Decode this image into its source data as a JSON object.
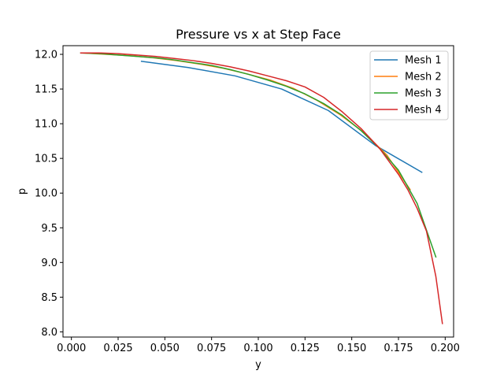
{
  "chart_data": {
    "type": "line",
    "title": "Pressure vs x at Step Face",
    "xlabel": "y",
    "ylabel": "p",
    "xlim": [
      -0.0045,
      0.2045
    ],
    "ylim": [
      7.925,
      12.125
    ],
    "xticks": [
      0.0,
      0.025,
      0.05,
      0.075,
      0.1,
      0.125,
      0.15,
      0.175,
      0.2
    ],
    "xtick_labels": [
      "0.000",
      "0.025",
      "0.050",
      "0.075",
      "0.100",
      "0.125",
      "0.150",
      "0.175",
      "0.200"
    ],
    "yticks": [
      8.0,
      8.5,
      9.0,
      9.5,
      10.0,
      10.5,
      11.0,
      11.5,
      12.0
    ],
    "ytick_labels": [
      "8.0",
      "8.5",
      "9.0",
      "9.5",
      "10.0",
      "10.5",
      "11.0",
      "11.5",
      "12.0"
    ],
    "grid": false,
    "legend_position": "top-right",
    "series": [
      {
        "name": "Mesh 1",
        "color": "#1f77b4",
        "x": [
          0.0375,
          0.0625,
          0.0875,
          0.1125,
          0.1375,
          0.1625,
          0.1875
        ],
        "y": [
          11.9,
          11.81,
          11.69,
          11.5,
          11.19,
          10.69,
          10.3
        ]
      },
      {
        "name": "Mesh 2",
        "color": "#ff7f0e",
        "x": [
          0.00625,
          0.01875,
          0.03125,
          0.04375,
          0.05625,
          0.06875,
          0.08125,
          0.09375,
          0.10625,
          0.11875,
          0.13125,
          0.14375,
          0.15625,
          0.16875,
          0.18125
        ],
        "y": [
          12.02,
          12.0,
          11.98,
          11.95,
          11.91,
          11.86,
          11.8,
          11.72,
          11.63,
          11.51,
          11.34,
          11.13,
          10.88,
          10.55,
          10.05
        ]
      },
      {
        "name": "Mesh 3",
        "color": "#2ca02c",
        "x": [
          0.005,
          0.015,
          0.025,
          0.035,
          0.045,
          0.055,
          0.065,
          0.075,
          0.085,
          0.095,
          0.105,
          0.115,
          0.125,
          0.135,
          0.145,
          0.155,
          0.165,
          0.175,
          0.185,
          0.195
        ],
        "y": [
          12.02,
          12.01,
          11.99,
          11.97,
          11.95,
          11.92,
          11.88,
          11.84,
          11.78,
          11.71,
          11.63,
          11.54,
          11.43,
          11.29,
          11.12,
          10.9,
          10.64,
          10.33,
          9.85,
          9.08
        ]
      },
      {
        "name": "Mesh 4",
        "color": "#d62728",
        "x": [
          0.005,
          0.015,
          0.025,
          0.035,
          0.045,
          0.055,
          0.065,
          0.075,
          0.085,
          0.095,
          0.105,
          0.115,
          0.125,
          0.135,
          0.145,
          0.155,
          0.165,
          0.175,
          0.18,
          0.185,
          0.19,
          0.195,
          0.1985
        ],
        "y": [
          12.02,
          12.02,
          12.01,
          11.99,
          11.97,
          11.94,
          11.91,
          11.87,
          11.82,
          11.76,
          11.69,
          11.62,
          11.53,
          11.38,
          11.17,
          10.93,
          10.64,
          10.27,
          10.05,
          9.78,
          9.45,
          8.8,
          8.12
        ]
      }
    ]
  }
}
